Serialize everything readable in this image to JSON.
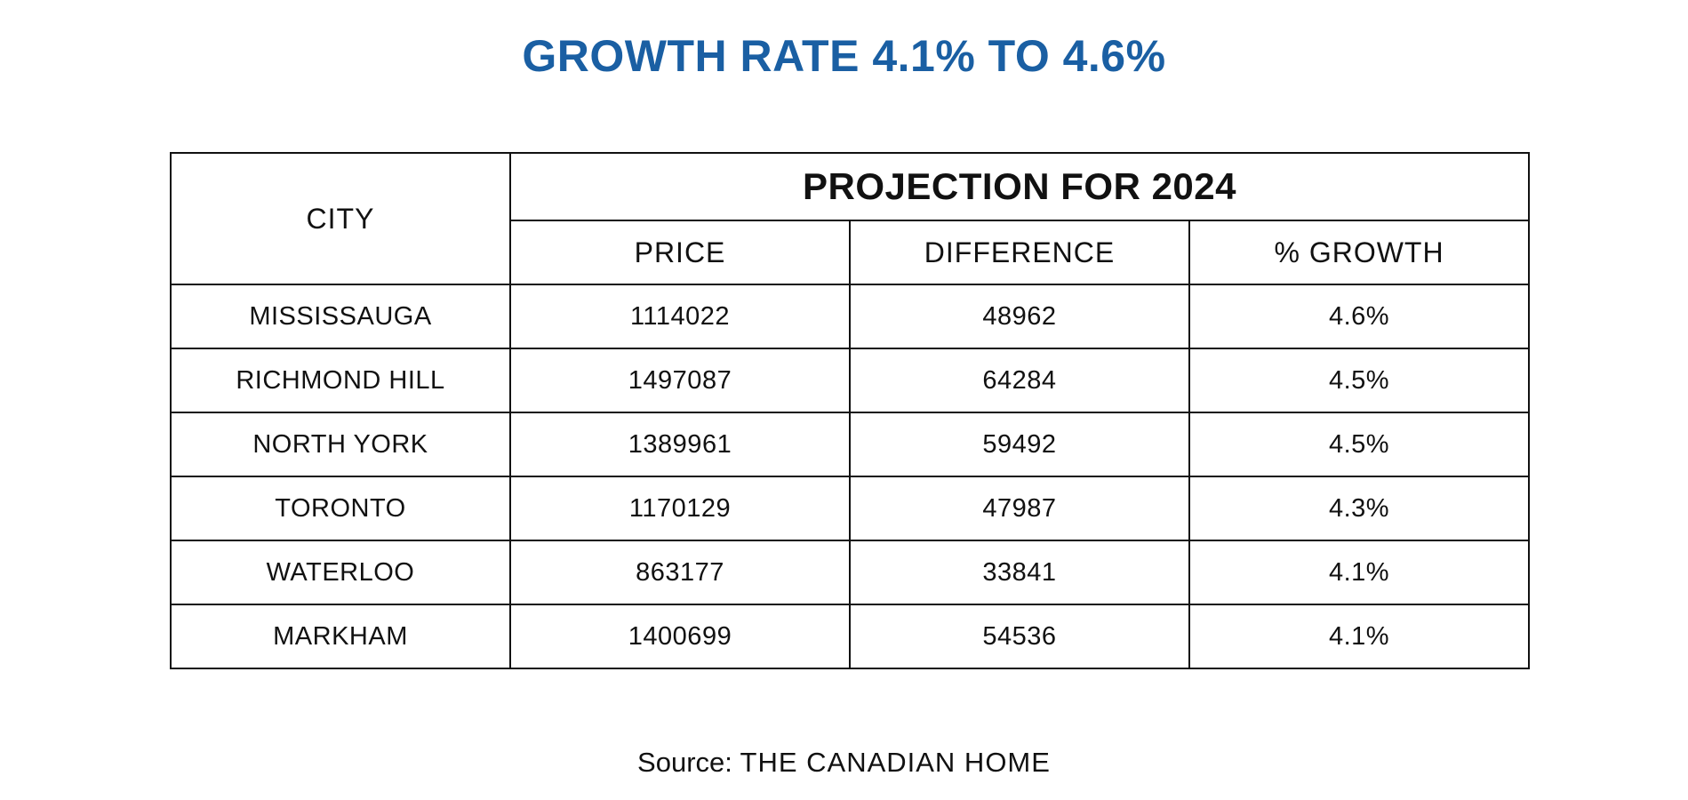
{
  "title": "GROWTH RATE 4.1% TO 4.6%",
  "table": {
    "city_header": "CITY",
    "group_header": "PROJECTION FOR 2024",
    "sub_headers": [
      "PRICE",
      "DIFFERENCE",
      "% GROWTH"
    ]
  },
  "source": {
    "label": "Source:",
    "name": "THE CANADIAN HOME"
  },
  "colors": {
    "title": "#1a5fa3",
    "border": "#111111",
    "text": "#111111"
  },
  "chart_data": {
    "type": "table",
    "title": "GROWTH RATE 4.1% TO 4.6%",
    "columns": [
      "CITY",
      "PRICE",
      "DIFFERENCE",
      "% GROWTH"
    ],
    "group_header": "PROJECTION FOR 2024",
    "rows": [
      {
        "city": "MISSISSAUGA",
        "price": "1114022",
        "difference": "48962",
        "growth": "4.6%"
      },
      {
        "city": "RICHMOND HILL",
        "price": "1497087",
        "difference": "64284",
        "growth": "4.5%"
      },
      {
        "city": "NORTH YORK",
        "price": "1389961",
        "difference": "59492",
        "growth": "4.5%"
      },
      {
        "city": "TORONTO",
        "price": "1170129",
        "difference": "47987",
        "growth": "4.3%"
      },
      {
        "city": "WATERLOO",
        "price": "863177",
        "difference": "33841",
        "growth": "4.1%"
      },
      {
        "city": "MARKHAM",
        "price": "1400699",
        "difference": "54536",
        "growth": "4.1%"
      }
    ]
  }
}
